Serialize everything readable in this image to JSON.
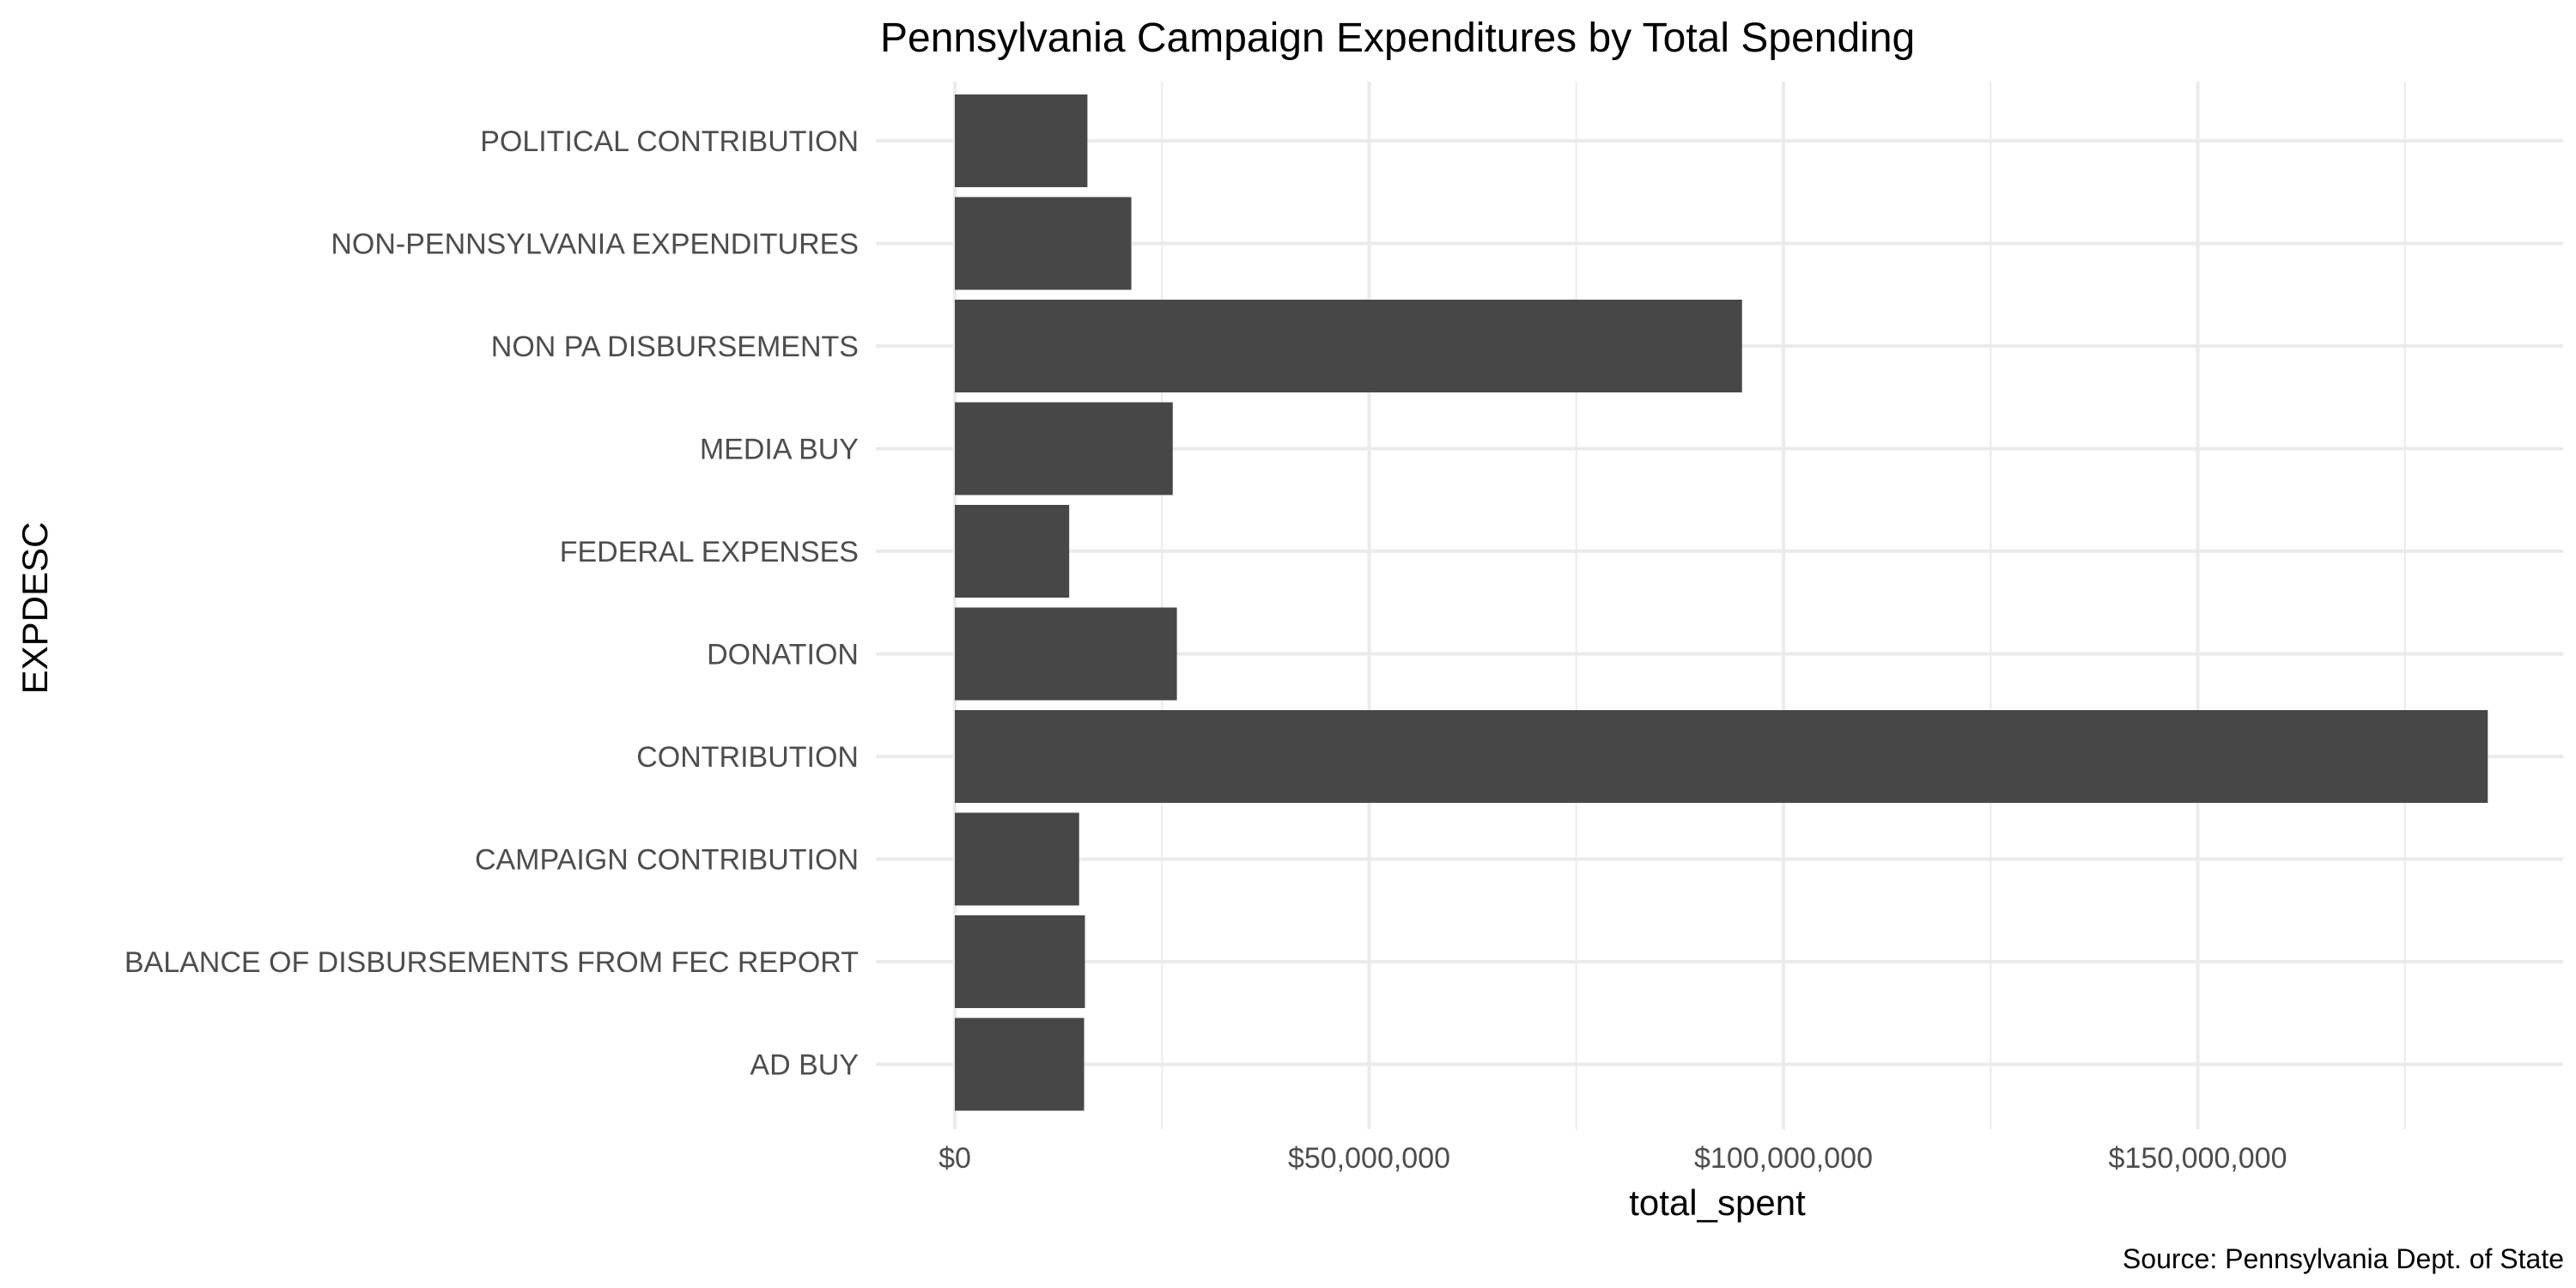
{
  "chart_data": {
    "type": "bar",
    "orientation": "horizontal",
    "title": "Pennsylvania Campaign Expenditures by Total Spending",
    "xlabel": "total_spent",
    "ylabel": "EXPDESC",
    "caption": "Source: Pennsylvania Dept. of State",
    "categories": [
      "AD BUY",
      "BALANCE OF DISBURSEMENTS FROM FEC REPORT",
      "CAMPAIGN CONTRIBUTION",
      "CONTRIBUTION",
      "DONATION",
      "FEDERAL EXPENSES",
      "MEDIA BUY",
      "NON PA DISBURSEMENTS",
      "NON-PENNSYLVANIA EXPENDITURES",
      "POLITICAL CONTRIBUTION"
    ],
    "values": [
      15600000,
      15700000,
      15000000,
      185000000,
      26800000,
      13800000,
      26300000,
      95000000,
      21300000,
      16000000
    ],
    "xlim": [
      0,
      193000000
    ],
    "xticks": [
      0,
      50000000,
      100000000,
      150000000
    ],
    "xtick_labels": [
      "$0",
      "$50,000,000",
      "$100,000,000",
      "$150,000,000"
    ],
    "grid": true,
    "colors": {
      "bar": "#474747",
      "grid": "#ebebeb",
      "tick_text": "#4d4d4d"
    }
  }
}
